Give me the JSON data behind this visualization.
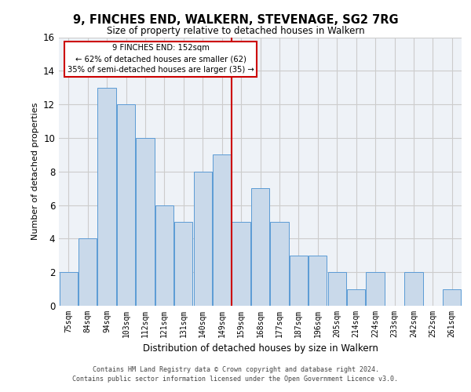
{
  "title": "9, FINCHES END, WALKERN, STEVENAGE, SG2 7RG",
  "subtitle": "Size of property relative to detached houses in Walkern",
  "xlabel": "Distribution of detached houses by size in Walkern",
  "ylabel": "Number of detached properties",
  "categories": [
    "75sqm",
    "84sqm",
    "94sqm",
    "103sqm",
    "112sqm",
    "121sqm",
    "131sqm",
    "140sqm",
    "149sqm",
    "159sqm",
    "168sqm",
    "177sqm",
    "187sqm",
    "196sqm",
    "205sqm",
    "214sqm",
    "224sqm",
    "233sqm",
    "242sqm",
    "252sqm",
    "261sqm"
  ],
  "values": [
    2,
    4,
    13,
    12,
    10,
    6,
    5,
    8,
    9,
    5,
    7,
    5,
    3,
    3,
    2,
    1,
    2,
    0,
    2,
    0,
    1
  ],
  "bar_color": "#c9d9ea",
  "bar_edge_color": "#5b9bd5",
  "bar_width": 0.95,
  "property_line_x": 8.5,
  "property_line_label": "9 FINCHES END: 152sqm",
  "annotation_line1": "← 62% of detached houses are smaller (62)",
  "annotation_line2": "35% of semi-detached houses are larger (35) →",
  "annotation_box_color": "#cc0000",
  "ylim": [
    0,
    16
  ],
  "yticks": [
    0,
    2,
    4,
    6,
    8,
    10,
    12,
    14,
    16
  ],
  "grid_color": "#cccccc",
  "background_color": "#eef2f7",
  "footer_line1": "Contains HM Land Registry data © Crown copyright and database right 2024.",
  "footer_line2": "Contains public sector information licensed under the Open Government Licence v3.0."
}
